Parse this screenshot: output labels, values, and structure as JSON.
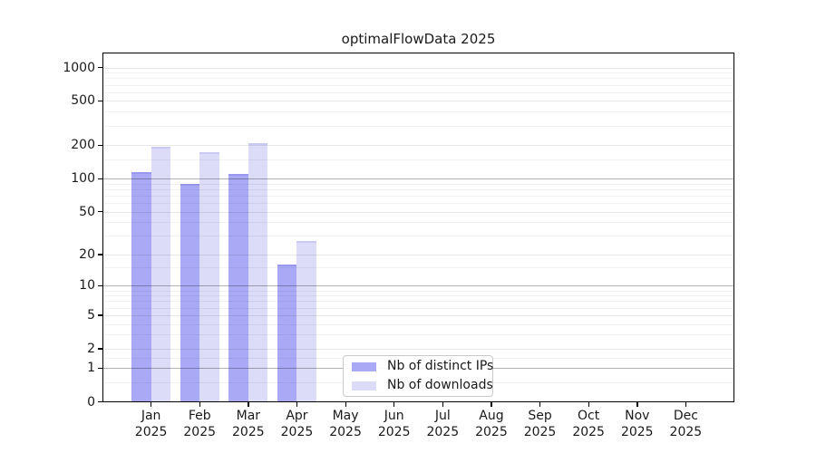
{
  "title": "optimalFlowData 2025",
  "legend": {
    "items": [
      {
        "label": "Nb of distinct IPs",
        "color": "#a9a9f5",
        "edge": "#9898ef"
      },
      {
        "label": "Nb of downloads",
        "color": "#dcdcf8",
        "edge": "#c9c9f4"
      }
    ]
  },
  "axes": {
    "y_tick_labels": [
      "0",
      "1",
      "2",
      "5",
      "10",
      "20",
      "50",
      "100",
      "200",
      "500",
      "1000"
    ],
    "x_months": [
      "Jan",
      "Feb",
      "Mar",
      "Apr",
      "May",
      "Jun",
      "Jul",
      "Aug",
      "Sep",
      "Oct",
      "Nov",
      "Dec"
    ],
    "x_year": "2025"
  },
  "chart_data": {
    "type": "bar",
    "title": "optimalFlowData 2025",
    "categories": [
      "Jan 2025",
      "Feb 2025",
      "Mar 2025",
      "Apr 2025",
      "May 2025",
      "Jun 2025",
      "Jul 2025",
      "Aug 2025",
      "Sep 2025",
      "Oct 2025",
      "Nov 2025",
      "Dec 2025"
    ],
    "series": [
      {
        "name": "Nb of distinct IPs",
        "color": "#a9a9f5",
        "edge_color": "#9898ef",
        "values": [
          115,
          90,
          109,
          16,
          0,
          0,
          0,
          0,
          0,
          0,
          0,
          0
        ]
      },
      {
        "name": "Nb of downloads",
        "color": "#dcdcf8",
        "edge_color": "#c9c9f4",
        "values": [
          195,
          172,
          210,
          27,
          0,
          0,
          0,
          0,
          0,
          0,
          0,
          0
        ]
      }
    ],
    "yscale": "log1p",
    "ylim": [
      0,
      1340
    ],
    "y_ticks": [
      0,
      1,
      2,
      5,
      10,
      20,
      50,
      100,
      200,
      500,
      1000
    ],
    "y_grid_emphasis": [
      1,
      10,
      100
    ],
    "y_minor_gridlines": [
      0.5,
      1.5,
      3,
      4,
      6,
      7,
      8,
      9,
      15,
      30,
      40,
      60,
      70,
      80,
      90,
      150,
      300,
      400,
      600,
      700,
      800,
      900
    ],
    "grid": "horizontal",
    "legend_position": "inside-bottom-center-left",
    "xlabel": "",
    "ylabel": ""
  },
  "colors": {
    "background": "#ffffff",
    "axis": "#000000",
    "grid_emphasis": "#b3b3b3",
    "grid_major": "#e7e7e7",
    "grid_minor": "#f2f2f2",
    "legend_border": "#c9c9c9"
  }
}
